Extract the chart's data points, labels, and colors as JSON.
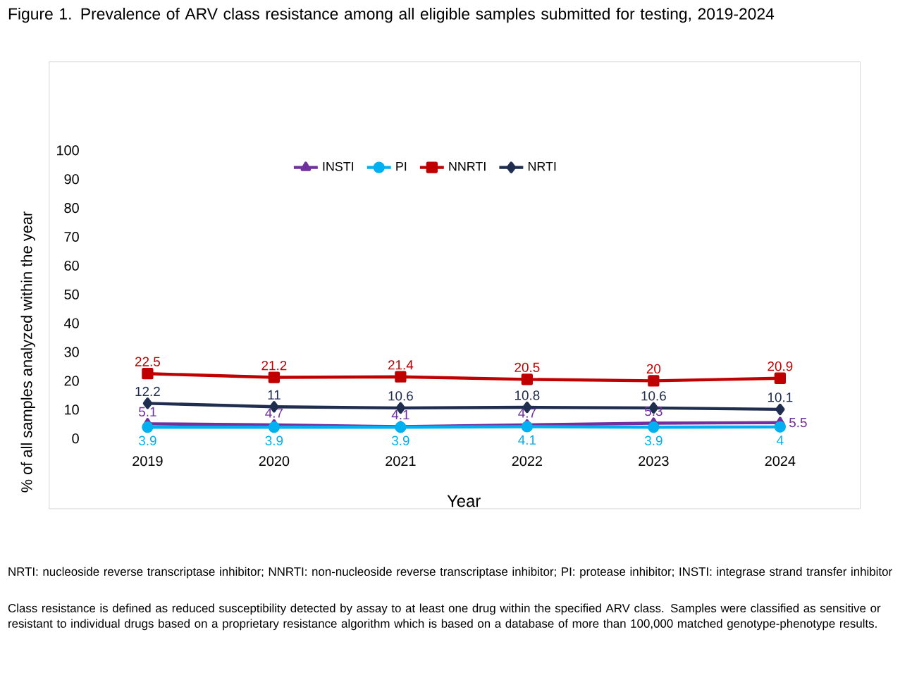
{
  "chart_data": {
    "type": "line",
    "title": "Figure 1. Prevalence of ARV class resistance among all eligible samples submitted for testing, 2019-2024",
    "xlabel": "Year",
    "ylabel": "% of all samples analyzed within the year",
    "categories": [
      "2019",
      "2020",
      "2021",
      "2022",
      "2023",
      "2024"
    ],
    "series": [
      {
        "name": "INSTI",
        "color": "#7030a0",
        "marker": "triangle",
        "values": [
          5.1,
          4.7,
          4.1,
          4.7,
          5.3,
          5.5
        ]
      },
      {
        "name": "PI",
        "color": "#00b0f0",
        "marker": "circle",
        "values": [
          3.9,
          3.9,
          3.9,
          4.1,
          3.9,
          4
        ]
      },
      {
        "name": "NNRTI",
        "color": "#c00000",
        "marker": "square",
        "values": [
          22.5,
          21.2,
          21.4,
          20.5,
          20,
          20.9
        ]
      },
      {
        "name": "NRTI",
        "color": "#1f2d4f",
        "marker": "diamond",
        "values": [
          12.2,
          11,
          10.6,
          10.8,
          10.6,
          10.1
        ]
      }
    ],
    "ylim": [
      0,
      100
    ],
    "yticks": [
      0,
      10,
      20,
      30,
      40,
      50,
      60,
      70,
      80,
      90,
      100
    ],
    "grid": false,
    "legend": "top",
    "data_labels": true,
    "annotations": [
      "NRTI: nucleoside reverse transcriptase inhibitor; NNRTI: non-nucleoside reverse transcriptase inhibitor; PI: protease inhibitor; INSTI: integrase strand transfer inhibitor",
      "Class resistance is defined as reduced susceptibility detected by assay to at least one drug within the specified ARV class. Samples were classified as sensitive or resistant to individual drugs based on a proprietary resistance algorithm which is based on a database of more than 100,000 matched genotype-phenotype results."
    ]
  }
}
